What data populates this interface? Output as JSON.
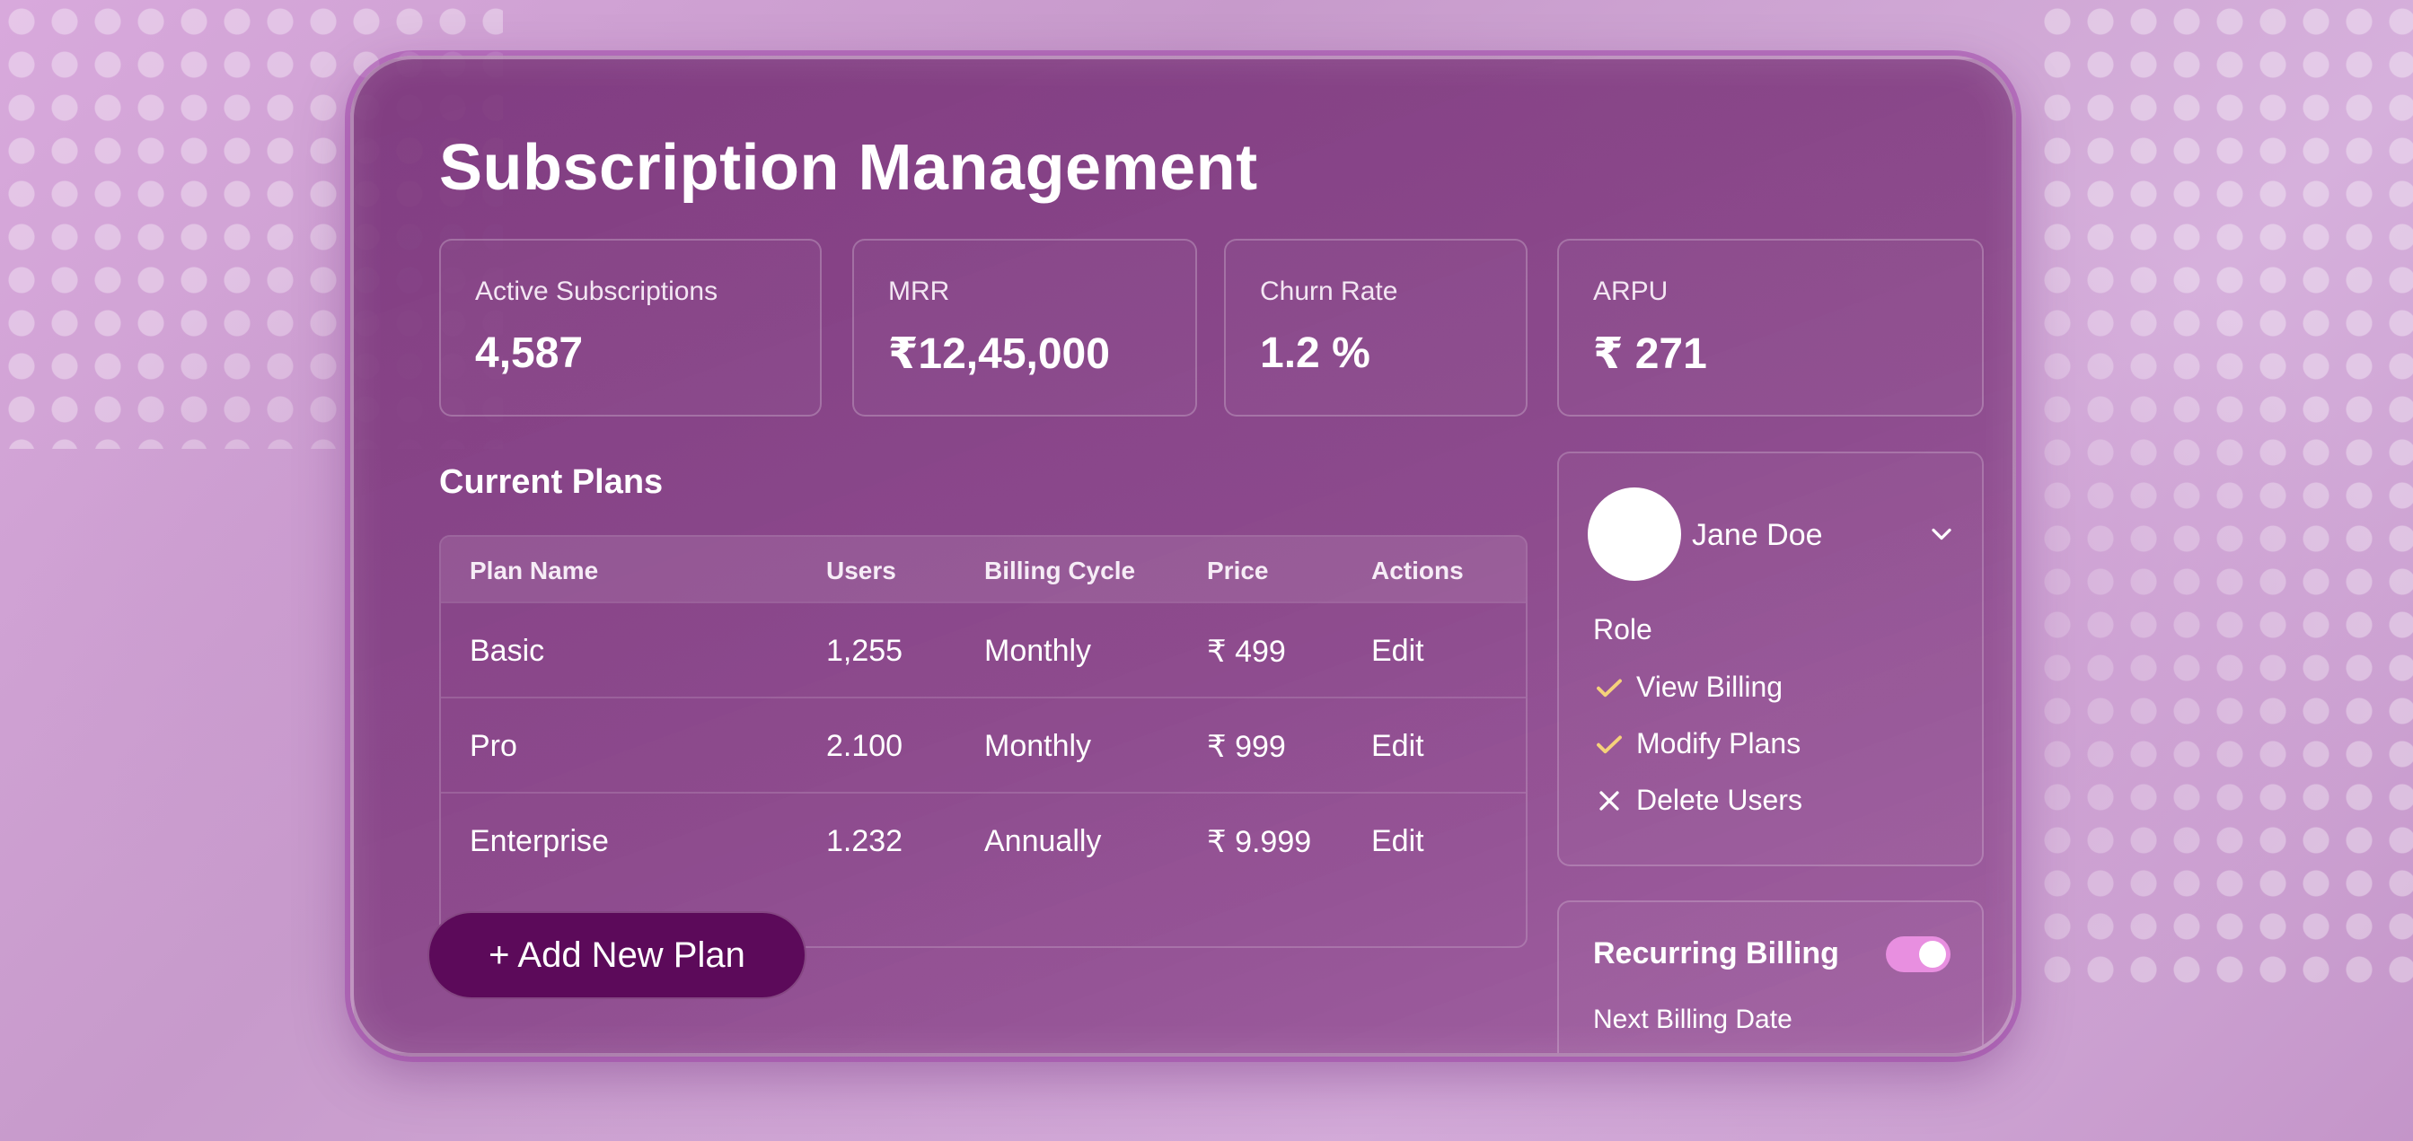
{
  "page": {
    "title": "Subscription Management"
  },
  "stats": [
    {
      "label": "Active Subscriptions",
      "value": "4,587"
    },
    {
      "label": "MRR",
      "value": "₹12,45,000"
    },
    {
      "label": "Churn Rate",
      "value": "1.2 %"
    },
    {
      "label": "ARPU",
      "value": "₹ 271"
    }
  ],
  "plans": {
    "section_title": "Current Plans",
    "columns": [
      "Plan Name",
      "Users",
      "Billing Cycle",
      "Price",
      "Actions"
    ],
    "rows": [
      {
        "name": "Basic",
        "users": "1,255",
        "cycle": "Monthly",
        "price": "₹ 499",
        "action": "Edit"
      },
      {
        "name": "Pro",
        "users": "2.100",
        "cycle": "Monthly",
        "price": "₹ 999",
        "action": "Edit"
      },
      {
        "name": "Enterprise",
        "users": "1.232",
        "cycle": "Annually",
        "price": "₹ 9.999",
        "action": "Edit"
      }
    ],
    "add_button": "+ Add New Plan"
  },
  "user": {
    "name": "Jane Doe",
    "role_label": "Role",
    "permissions": [
      {
        "label": "View Billing",
        "granted": true
      },
      {
        "label": "Modify Plans",
        "granted": true
      },
      {
        "label": "Delete Users",
        "granted": false
      }
    ]
  },
  "billing": {
    "recurring_label": "Recurring Billing",
    "recurring_enabled": true,
    "next_billing_label": "Next Billing Date"
  },
  "colors": {
    "panel": "#8a4289",
    "button": "#5c0a5a",
    "toggle": "#e88fe0",
    "check": "#f5d27a"
  }
}
